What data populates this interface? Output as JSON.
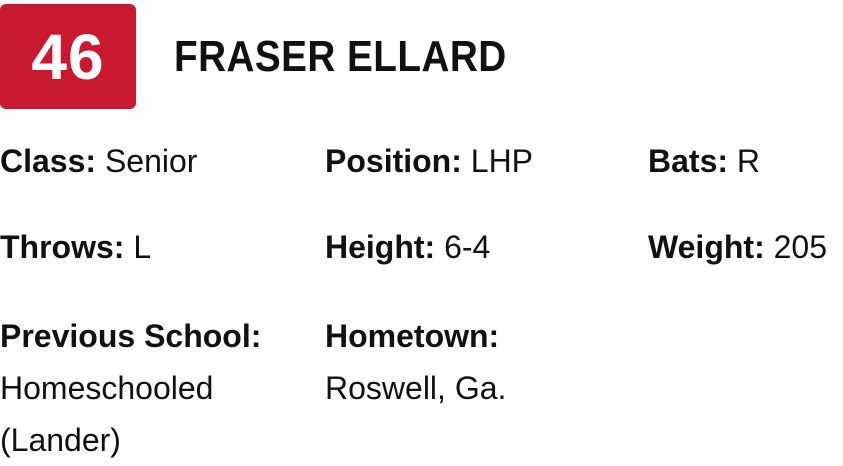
{
  "player": {
    "number": "46",
    "name": "FRASER ELLARD"
  },
  "colors": {
    "jersey_background": "#c8192f",
    "text": "#111111"
  },
  "details": {
    "class": {
      "label": "Class:",
      "value": "Senior"
    },
    "position": {
      "label": "Position:",
      "value": "LHP"
    },
    "bats": {
      "label": "Bats:",
      "value": "R"
    },
    "throws": {
      "label": "Throws:",
      "value": "L"
    },
    "height": {
      "label": "Height:",
      "value": "6-4"
    },
    "weight": {
      "label": "Weight:",
      "value": "205"
    },
    "previous_school": {
      "label": "Previous School:",
      "value": "Homeschooled (Lander)"
    },
    "hometown": {
      "label": "Hometown:",
      "value": "Roswell, Ga."
    }
  }
}
